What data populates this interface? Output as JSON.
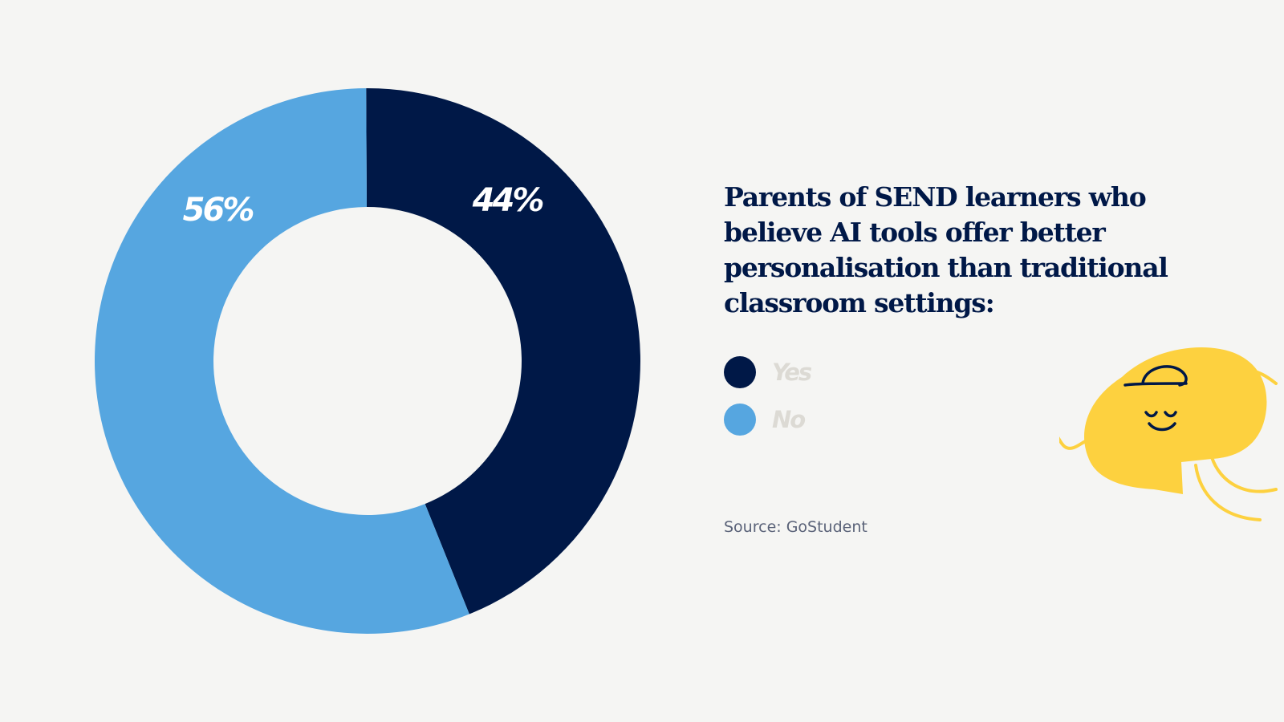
{
  "chart_data": {
    "type": "pie",
    "title": "Parents of SEND learners who believe AI tools offer better personalisation than traditional classroom settings:",
    "series": [
      {
        "name": "Yes",
        "value": 44,
        "label": "44%",
        "color": "#001847"
      },
      {
        "name": "No",
        "value": 56,
        "label": "56%",
        "color": "#56a6e0"
      }
    ],
    "legend": "right",
    "source": "Source: GoStudent"
  },
  "mascot": {
    "icon": "smiling-speech-bubble-mascot-icon",
    "color": "#fdd13f",
    "line_color": "#001847"
  }
}
